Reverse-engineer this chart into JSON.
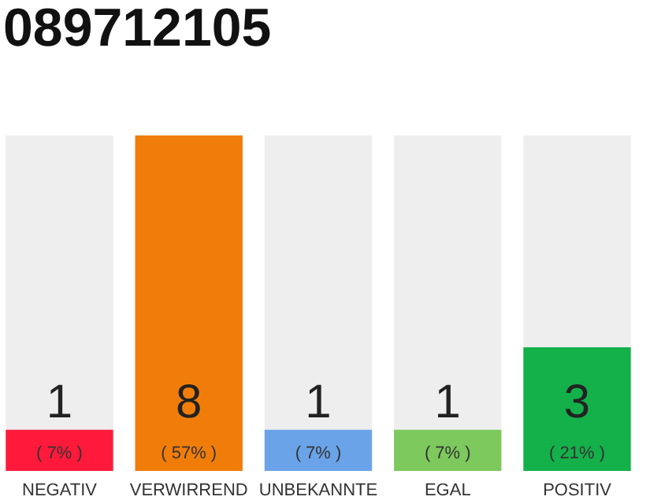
{
  "chart_data": {
    "type": "bar",
    "title": "089712105",
    "categories": [
      "NEGATIV",
      "VERWIRREND",
      "UNBEKANNTE",
      "EGAL",
      "POSITIV"
    ],
    "values": [
      7,
      57,
      7,
      7,
      21
    ],
    "colors": [
      "#ff1a3c",
      "#f07d0a",
      "#6aa3e8",
      "#7dc95e",
      "#14b04a"
    ],
    "value_labels": [
      "( 7% )",
      "( 57% )",
      "( 7% )",
      "( 7% )",
      "( 21% )"
    ],
    "annotations": [
      "1",
      "8",
      "1",
      "1",
      "3"
    ]
  }
}
